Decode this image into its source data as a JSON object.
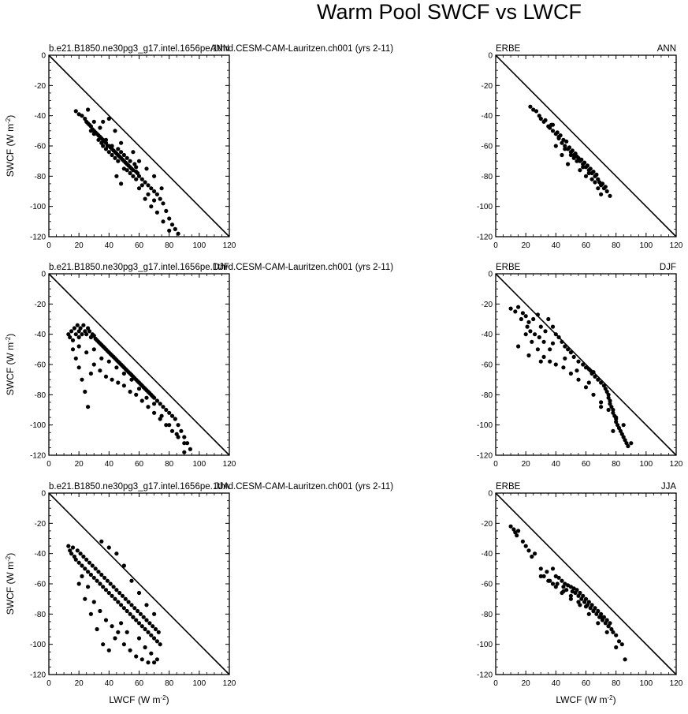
{
  "title": "Warm Pool SWCF vs LWCF",
  "chart_data": [
    {
      "type": "scatter",
      "left_label": "b.e21.B1850.ne30pg3_g17.intel.1656pe.1thrd.CESM-CAM-Lauritzen.ch001 (yrs 2-11)",
      "right_label": "ANN",
      "xlabel": "",
      "ylabel": "SWCF (W m-2)",
      "xlim": [
        0,
        120
      ],
      "ylim": [
        -120,
        0
      ],
      "xticks": [
        0,
        20,
        40,
        60,
        80,
        100,
        120
      ],
      "yticks": [
        0,
        -20,
        -40,
        -60,
        -80,
        -100,
        -120
      ],
      "x": [
        18,
        20,
        22,
        24,
        25,
        26,
        27,
        28,
        28,
        29,
        30,
        30,
        31,
        32,
        33,
        33,
        34,
        35,
        35,
        36,
        36,
        37,
        38,
        38,
        39,
        40,
        40,
        41,
        42,
        42,
        43,
        44,
        44,
        45,
        46,
        46,
        47,
        48,
        48,
        49,
        50,
        50,
        51,
        52,
        52,
        53,
        54,
        54,
        55,
        56,
        57,
        58,
        58,
        59,
        60,
        62,
        64,
        66,
        68,
        70,
        72,
        74,
        76,
        78,
        80,
        82,
        84,
        86,
        30,
        34,
        38,
        42,
        46,
        50,
        54,
        58,
        62,
        66,
        70,
        45,
        48,
        52,
        56,
        60,
        64,
        68,
        72,
        76,
        80,
        26,
        36,
        40,
        44,
        48,
        56,
        60,
        65,
        70,
        75
      ],
      "y": [
        -37,
        -39,
        -40,
        -42,
        -44,
        -45,
        -46,
        -47,
        -50,
        -49,
        -50,
        -52,
        -51,
        -52,
        -53,
        -56,
        -54,
        -55,
        -58,
        -56,
        -60,
        -57,
        -58,
        -62,
        -60,
        -60,
        -64,
        -61,
        -62,
        -66,
        -63,
        -64,
        -68,
        -65,
        -66,
        -62,
        -67,
        -68,
        -64,
        -69,
        -70,
        -66,
        -71,
        -72,
        -68,
        -73,
        -74,
        -70,
        -75,
        -76,
        -72,
        -77,
        -74,
        -78,
        -80,
        -82,
        -84,
        -86,
        -88,
        -90,
        -92,
        -95,
        -98,
        -103,
        -108,
        -112,
        -115,
        -118,
        -44,
        -48,
        -56,
        -60,
        -70,
        -75,
        -78,
        -82,
        -86,
        -92,
        -96,
        -80,
        -85,
        -76,
        -80,
        -88,
        -95,
        -100,
        -104,
        -110,
        -116,
        -36,
        -44,
        -42,
        -50,
        -58,
        -64,
        -70,
        -75,
        -80,
        -88
      ]
    },
    {
      "type": "scatter",
      "left_label": "ERBE",
      "right_label": "ANN",
      "xlabel": "",
      "ylabel": "",
      "xlim": [
        0,
        120
      ],
      "ylim": [
        -120,
        0
      ],
      "xticks": [
        0,
        20,
        40,
        60,
        80,
        100,
        120
      ],
      "yticks": [
        0,
        -20,
        -40,
        -60,
        -80,
        -100,
        -120
      ],
      "x": [
        23,
        25,
        27,
        29,
        30,
        32,
        33,
        35,
        36,
        37,
        38,
        40,
        41,
        42,
        43,
        44,
        45,
        46,
        47,
        48,
        49,
        50,
        51,
        52,
        53,
        54,
        55,
        56,
        57,
        58,
        59,
        60,
        61,
        62,
        63,
        64,
        65,
        66,
        67,
        68,
        69,
        70,
        71,
        72,
        73,
        74,
        76,
        38,
        42,
        46,
        50,
        54,
        58,
        62,
        66,
        70,
        40,
        44,
        48,
        52,
        56,
        60,
        64,
        68
      ],
      "y": [
        -34,
        -36,
        -37,
        -40,
        -42,
        -44,
        -43,
        -47,
        -48,
        -46,
        -50,
        -52,
        -51,
        -55,
        -53,
        -58,
        -56,
        -60,
        -57,
        -62,
        -61,
        -64,
        -63,
        -66,
        -65,
        -67,
        -68,
        -70,
        -69,
        -72,
        -71,
        -74,
        -73,
        -76,
        -75,
        -78,
        -77,
        -80,
        -79,
        -82,
        -84,
        -86,
        -85,
        -88,
        -87,
        -90,
        -93,
        -46,
        -54,
        -62,
        -66,
        -70,
        -74,
        -78,
        -84,
        -92,
        -60,
        -66,
        -72,
        -68,
        -76,
        -80,
        -82,
        -88
      ]
    },
    {
      "type": "scatter",
      "left_label": "b.e21.B1850.ne30pg3_g17.intel.1656pe.1thrd.CESM-CAM-Lauritzen.ch001 (yrs 2-11)",
      "right_label": "DJF",
      "xlabel": "",
      "ylabel": "SWCF (W m-2)",
      "xlim": [
        0,
        120
      ],
      "ylim": [
        -120,
        0
      ],
      "xticks": [
        0,
        20,
        40,
        60,
        80,
        100,
        120
      ],
      "yticks": [
        0,
        -20,
        -40,
        -60,
        -80,
        -100,
        -120
      ],
      "x": [
        13,
        14,
        15,
        16,
        17,
        18,
        19,
        20,
        20,
        21,
        22,
        23,
        24,
        25,
        26,
        27,
        28,
        29,
        30,
        31,
        32,
        33,
        34,
        35,
        36,
        37,
        38,
        39,
        40,
        41,
        42,
        43,
        44,
        45,
        46,
        47,
        48,
        49,
        50,
        51,
        52,
        53,
        54,
        55,
        56,
        57,
        58,
        59,
        60,
        61,
        62,
        63,
        64,
        65,
        66,
        67,
        68,
        69,
        70,
        72,
        74,
        76,
        78,
        80,
        82,
        84,
        86,
        88,
        90,
        92,
        94,
        16,
        18,
        20,
        22,
        24,
        26,
        28,
        30,
        34,
        38,
        42,
        46,
        50,
        54,
        58,
        62,
        66,
        70,
        74,
        78,
        82,
        86,
        90,
        20,
        25,
        30,
        35,
        40,
        45,
        50,
        55,
        60,
        65,
        70,
        75,
        80,
        85,
        90
      ],
      "y": [
        -40,
        -42,
        -38,
        -44,
        -36,
        -40,
        -34,
        -38,
        -42,
        -36,
        -40,
        -34,
        -38,
        -40,
        -36,
        -38,
        -42,
        -40,
        -41,
        -43,
        -44,
        -45,
        -46,
        -47,
        -48,
        -49,
        -50,
        -51,
        -52,
        -53,
        -54,
        -55,
        -56,
        -57,
        -58,
        -59,
        -60,
        -61,
        -62,
        -63,
        -64,
        -65,
        -66,
        -67,
        -68,
        -69,
        -70,
        -71,
        -72,
        -73,
        -74,
        -75,
        -76,
        -77,
        -78,
        -79,
        -80,
        -81,
        -82,
        -84,
        -86,
        -88,
        -90,
        -92,
        -94,
        -96,
        -100,
        -104,
        -108,
        -112,
        -116,
        -50,
        -56,
        -62,
        -70,
        -78,
        -88,
        -66,
        -60,
        -64,
        -68,
        -70,
        -72,
        -74,
        -78,
        -80,
        -84,
        -88,
        -92,
        -96,
        -100,
        -104,
        -108,
        -112,
        -48,
        -52,
        -50,
        -56,
        -58,
        -62,
        -66,
        -70,
        -76,
        -82,
        -86,
        -94,
        -100,
        -106,
        -118
      ]
    },
    {
      "type": "scatter",
      "left_label": "ERBE",
      "right_label": "DJF",
      "xlabel": "",
      "ylabel": "",
      "xlim": [
        0,
        120
      ],
      "ylim": [
        -120,
        0
      ],
      "xticks": [
        0,
        20,
        40,
        60,
        80,
        100,
        120
      ],
      "yticks": [
        0,
        -20,
        -40,
        -60,
        -80,
        -100,
        -120
      ],
      "x": [
        10,
        13,
        15,
        17,
        18,
        20,
        21,
        22,
        23,
        25,
        26,
        28,
        29,
        30,
        32,
        33,
        35,
        36,
        38,
        40,
        42,
        44,
        46,
        48,
        50,
        52,
        55,
        58,
        60,
        62,
        63,
        64,
        65,
        66,
        68,
        70,
        72,
        73,
        74,
        75,
        75,
        76,
        76,
        77,
        78,
        78,
        79,
        80,
        80,
        81,
        82,
        83,
        84,
        85,
        86,
        87,
        88,
        90,
        20,
        24,
        28,
        32,
        36,
        40,
        45,
        50,
        55,
        60,
        65,
        70,
        75,
        80,
        85,
        15,
        22,
        30,
        38,
        46,
        54,
        62,
        70,
        78
      ],
      "y": [
        -23,
        -25,
        -22,
        -30,
        -26,
        -28,
        -35,
        -32,
        -38,
        -30,
        -40,
        -27,
        -42,
        -35,
        -45,
        -38,
        -30,
        -50,
        -35,
        -40,
        -42,
        -45,
        -48,
        -50,
        -52,
        -55,
        -58,
        -60,
        -62,
        -63,
        -64,
        -66,
        -65,
        -68,
        -70,
        -72,
        -74,
        -76,
        -78,
        -80,
        -82,
        -84,
        -86,
        -88,
        -90,
        -92,
        -94,
        -96,
        -98,
        -100,
        -102,
        -104,
        -106,
        -108,
        -110,
        -112,
        -114,
        -112,
        -40,
        -45,
        -50,
        -55,
        -58,
        -60,
        -62,
        -66,
        -70,
        -75,
        -80,
        -85,
        -90,
        -95,
        -100,
        -48,
        -54,
        -58,
        -46,
        -56,
        -64,
        -72,
        -88,
        -104
      ]
    },
    {
      "type": "scatter",
      "left_label": "b.e21.B1850.ne30pg3_g17.intel.1656pe.1thrd.CESM-CAM-Lauritzen.ch001 (yrs 2-11)",
      "right_label": "JJA",
      "xlabel": "LWCF (W m-2)",
      "ylabel": "SWCF (W m-2)",
      "xlim": [
        0,
        120
      ],
      "ylim": [
        -120,
        0
      ],
      "xticks": [
        0,
        20,
        40,
        60,
        80,
        100,
        120
      ],
      "yticks": [
        0,
        -20,
        -40,
        -60,
        -80,
        -100,
        -120
      ],
      "x": [
        13,
        14,
        15,
        16,
        17,
        18,
        19,
        20,
        21,
        22,
        23,
        24,
        25,
        26,
        27,
        28,
        29,
        30,
        31,
        32,
        33,
        34,
        35,
        36,
        37,
        38,
        39,
        40,
        41,
        42,
        43,
        44,
        45,
        46,
        47,
        48,
        49,
        50,
        51,
        52,
        53,
        54,
        55,
        56,
        57,
        58,
        59,
        60,
        61,
        62,
        63,
        64,
        65,
        66,
        67,
        68,
        69,
        70,
        71,
        72,
        73,
        74,
        20,
        24,
        28,
        32,
        36,
        40,
        44,
        48,
        52,
        56,
        60,
        64,
        68,
        72,
        22,
        26,
        30,
        34,
        38,
        42,
        46,
        50,
        54,
        58,
        62,
        66,
        70,
        35,
        40,
        45,
        50,
        55,
        60,
        65,
        70
      ],
      "y": [
        -35,
        -38,
        -40,
        -36,
        -42,
        -44,
        -38,
        -46,
        -40,
        -48,
        -42,
        -50,
        -44,
        -52,
        -46,
        -54,
        -48,
        -56,
        -50,
        -58,
        -52,
        -60,
        -54,
        -62,
        -56,
        -64,
        -58,
        -66,
        -60,
        -68,
        -62,
        -70,
        -64,
        -72,
        -66,
        -74,
        -68,
        -76,
        -70,
        -78,
        -72,
        -80,
        -74,
        -82,
        -76,
        -84,
        -78,
        -86,
        -80,
        -88,
        -82,
        -90,
        -84,
        -92,
        -86,
        -94,
        -88,
        -96,
        -90,
        -98,
        -92,
        -100,
        -60,
        -70,
        -80,
        -90,
        -100,
        -104,
        -96,
        -86,
        -92,
        -82,
        -96,
        -102,
        -106,
        -110,
        -55,
        -62,
        -72,
        -78,
        -84,
        -88,
        -92,
        -100,
        -104,
        -108,
        -110,
        -112,
        -112,
        -32,
        -36,
        -40,
        -48,
        -58,
        -66,
        -74,
        -80
      ]
    },
    {
      "type": "scatter",
      "left_label": "ERBE",
      "right_label": "JJA",
      "xlabel": "LWCF (W m-2)",
      "ylabel": "",
      "xlim": [
        0,
        120
      ],
      "ylim": [
        -120,
        0
      ],
      "xticks": [
        0,
        20,
        40,
        60,
        80,
        100,
        120
      ],
      "yticks": [
        0,
        -20,
        -40,
        -60,
        -80,
        -100,
        -120
      ],
      "x": [
        10,
        12,
        13,
        14,
        15,
        18,
        20,
        22,
        24,
        26,
        30,
        32,
        34,
        36,
        38,
        40,
        41,
        42,
        44,
        45,
        46,
        47,
        48,
        50,
        51,
        52,
        53,
        54,
        55,
        56,
        57,
        58,
        59,
        60,
        61,
        62,
        63,
        64,
        65,
        66,
        67,
        68,
        69,
        70,
        71,
        72,
        73,
        74,
        75,
        76,
        77,
        78,
        80,
        82,
        84,
        86,
        30,
        35,
        40,
        45,
        50,
        55,
        60,
        65,
        70,
        75,
        80,
        38,
        44,
        50,
        56,
        62,
        68,
        74
      ],
      "y": [
        -22,
        -24,
        -26,
        -28,
        -25,
        -32,
        -35,
        -38,
        -42,
        -40,
        -50,
        -55,
        -52,
        -58,
        -50,
        -55,
        -60,
        -56,
        -58,
        -62,
        -60,
        -64,
        -61,
        -62,
        -65,
        -63,
        -66,
        -64,
        -68,
        -66,
        -70,
        -68,
        -72,
        -70,
        -74,
        -72,
        -76,
        -74,
        -78,
        -76,
        -80,
        -78,
        -82,
        -80,
        -84,
        -82,
        -86,
        -84,
        -88,
        -86,
        -90,
        -92,
        -94,
        -98,
        -100,
        -110,
        -55,
        -58,
        -62,
        -65,
        -68,
        -72,
        -75,
        -78,
        -82,
        -88,
        -102,
        -60,
        -66,
        -70,
        -74,
        -80,
        -86,
        -92
      ]
    }
  ]
}
